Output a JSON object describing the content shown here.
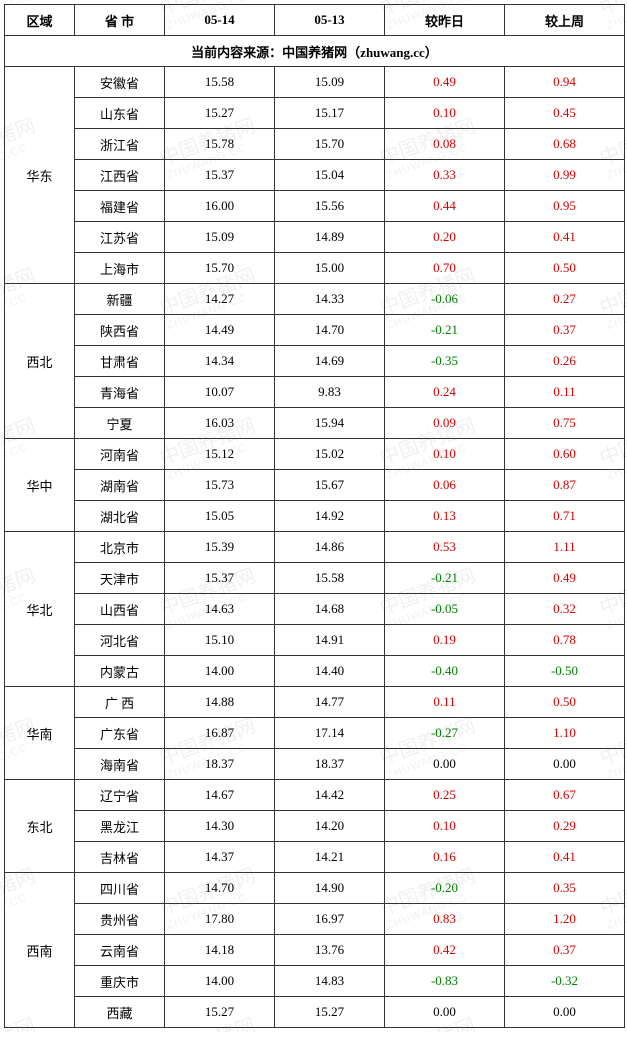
{
  "header": {
    "region": "区域",
    "province": "省  市",
    "date1": "05-14",
    "date2": "05-13",
    "vs_yesterday": "较昨日",
    "vs_lastweek": "较上周"
  },
  "source_line": "当前内容来源：中国养猪网（zhuwang.cc）",
  "watermark": {
    "text_cn": "中国养猪网",
    "text_en": "ZHUWANG.CC"
  },
  "columns_width": [
    "70",
    "90",
    "110",
    "110",
    "120",
    "120"
  ],
  "colors": {
    "positive": "#d60000",
    "negative": "#008000",
    "zero": "#000000",
    "border": "#333333",
    "background": "#ffffff",
    "watermark": "rgba(0,0,0,0.06)"
  },
  "regions": [
    {
      "name": "华东",
      "rows": [
        {
          "province": "安徽省",
          "d1": "15.58",
          "d2": "15.09",
          "dy": "0.49",
          "dw": "0.94"
        },
        {
          "province": "山东省",
          "d1": "15.27",
          "d2": "15.17",
          "dy": "0.10",
          "dw": "0.45"
        },
        {
          "province": "浙江省",
          "d1": "15.78",
          "d2": "15.70",
          "dy": "0.08",
          "dw": "0.68"
        },
        {
          "province": "江西省",
          "d1": "15.37",
          "d2": "15.04",
          "dy": "0.33",
          "dw": "0.99"
        },
        {
          "province": "福建省",
          "d1": "16.00",
          "d2": "15.56",
          "dy": "0.44",
          "dw": "0.95"
        },
        {
          "province": "江苏省",
          "d1": "15.09",
          "d2": "14.89",
          "dy": "0.20",
          "dw": "0.41"
        },
        {
          "province": "上海市",
          "d1": "15.70",
          "d2": "15.00",
          "dy": "0.70",
          "dw": "0.50"
        }
      ]
    },
    {
      "name": "西北",
      "rows": [
        {
          "province": "新疆",
          "d1": "14.27",
          "d2": "14.33",
          "dy": "-0.06",
          "dw": "0.27"
        },
        {
          "province": "陕西省",
          "d1": "14.49",
          "d2": "14.70",
          "dy": "-0.21",
          "dw": "0.37"
        },
        {
          "province": "甘肃省",
          "d1": "14.34",
          "d2": "14.69",
          "dy": "-0.35",
          "dw": "0.26"
        },
        {
          "province": "青海省",
          "d1": "10.07",
          "d2": "9.83",
          "dy": "0.24",
          "dw": "0.11"
        },
        {
          "province": "宁夏",
          "d1": "16.03",
          "d2": "15.94",
          "dy": "0.09",
          "dw": "0.75"
        }
      ]
    },
    {
      "name": "华中",
      "rows": [
        {
          "province": "河南省",
          "d1": "15.12",
          "d2": "15.02",
          "dy": "0.10",
          "dw": "0.60"
        },
        {
          "province": "湖南省",
          "d1": "15.73",
          "d2": "15.67",
          "dy": "0.06",
          "dw": "0.87"
        },
        {
          "province": "湖北省",
          "d1": "15.05",
          "d2": "14.92",
          "dy": "0.13",
          "dw": "0.71"
        }
      ]
    },
    {
      "name": "华北",
      "rows": [
        {
          "province": "北京市",
          "d1": "15.39",
          "d2": "14.86",
          "dy": "0.53",
          "dw": "1.11"
        },
        {
          "province": "天津市",
          "d1": "15.37",
          "d2": "15.58",
          "dy": "-0.21",
          "dw": "0.49"
        },
        {
          "province": "山西省",
          "d1": "14.63",
          "d2": "14.68",
          "dy": "-0.05",
          "dw": "0.32"
        },
        {
          "province": "河北省",
          "d1": "15.10",
          "d2": "14.91",
          "dy": "0.19",
          "dw": "0.78"
        },
        {
          "province": "内蒙古",
          "d1": "14.00",
          "d2": "14.40",
          "dy": "-0.40",
          "dw": "-0.50"
        }
      ]
    },
    {
      "name": "华南",
      "rows": [
        {
          "province": "广  西",
          "d1": "14.88",
          "d2": "14.77",
          "dy": "0.11",
          "dw": "0.50"
        },
        {
          "province": "广东省",
          "d1": "16.87",
          "d2": "17.14",
          "dy": "-0.27",
          "dw": "1.10"
        },
        {
          "province": "海南省",
          "d1": "18.37",
          "d2": "18.37",
          "dy": "0.00",
          "dw": "0.00"
        }
      ]
    },
    {
      "name": "东北",
      "rows": [
        {
          "province": "辽宁省",
          "d1": "14.67",
          "d2": "14.42",
          "dy": "0.25",
          "dw": "0.67"
        },
        {
          "province": "黑龙江",
          "d1": "14.30",
          "d2": "14.20",
          "dy": "0.10",
          "dw": "0.29"
        },
        {
          "province": "吉林省",
          "d1": "14.37",
          "d2": "14.21",
          "dy": "0.16",
          "dw": "0.41"
        }
      ]
    },
    {
      "name": "西南",
      "rows": [
        {
          "province": "四川省",
          "d1": "14.70",
          "d2": "14.90",
          "dy": "-0.20",
          "dw": "0.35"
        },
        {
          "province": "贵州省",
          "d1": "17.80",
          "d2": "16.97",
          "dy": "0.83",
          "dw": "1.20"
        },
        {
          "province": "云南省",
          "d1": "14.18",
          "d2": "13.76",
          "dy": "0.42",
          "dw": "0.37"
        },
        {
          "province": "重庆市",
          "d1": "14.00",
          "d2": "14.83",
          "dy": "-0.83",
          "dw": "-0.32"
        },
        {
          "province": "西藏",
          "d1": "15.27",
          "d2": "15.27",
          "dy": "0.00",
          "dw": "0.00"
        }
      ]
    }
  ]
}
